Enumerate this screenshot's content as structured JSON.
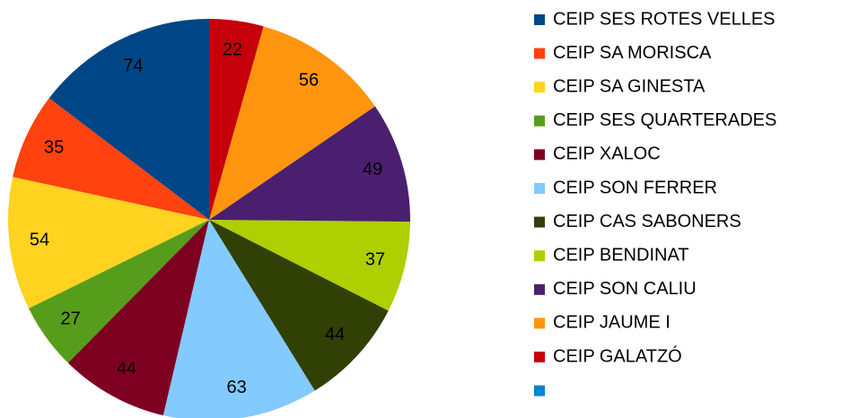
{
  "chart_data": {
    "type": "pie",
    "categories": [
      "CEIP SES ROTES VELLES",
      "CEIP SA MORISCA",
      "CEIP SA GINESTA",
      "CEIP SES QUARTERADES",
      "CEIP XALOC",
      "CEIP SON FERRER",
      "CEIP CAS SABONERS",
      "CEIP BENDINAT",
      "CEIP SON CALIU",
      "CEIP JAUME I",
      "CEIP GALATZÓ",
      null
    ],
    "values": [
      74,
      35,
      54,
      27,
      44,
      63,
      44,
      37,
      49,
      56,
      22,
      null
    ],
    "colors": [
      "#004586",
      "#ff420e",
      "#ffd320",
      "#579d1c",
      "#7e0021",
      "#83caff",
      "#314004",
      "#aecf00",
      "#4b1f6f",
      "#ff950e",
      "#c5000b",
      "#0084d1"
    ],
    "direction": "counterclockwise",
    "legend": "right"
  }
}
